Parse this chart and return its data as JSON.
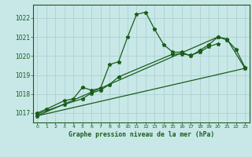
{
  "title": "Graphe pression niveau de la mer (hPa)",
  "bg_color": "#c8e8e8",
  "grid_color": "#a8cccc",
  "line_color": "#1a5c1a",
  "hours": [
    0,
    1,
    2,
    3,
    4,
    5,
    6,
    7,
    8,
    9,
    10,
    11,
    12,
    13,
    14,
    15,
    16,
    17,
    18,
    19,
    20,
    21,
    22,
    23
  ],
  "series1_x": [
    0,
    1,
    3,
    4,
    5,
    6,
    7,
    8,
    9,
    10,
    11,
    12,
    13,
    14,
    15,
    16,
    17,
    18,
    19,
    20,
    21,
    22,
    23
  ],
  "series1_y": [
    1017.0,
    1017.2,
    1017.65,
    1017.75,
    1018.35,
    1018.2,
    1018.3,
    1019.55,
    1019.7,
    1021.0,
    1022.2,
    1022.3,
    1021.4,
    1020.6,
    1020.2,
    1020.2,
    1020.0,
    1020.3,
    1020.6,
    1021.0,
    1020.85,
    1020.35,
    1019.4
  ],
  "series2_x": [
    0,
    3,
    5,
    6,
    7,
    8,
    9,
    15,
    16,
    17,
    18,
    19,
    20
  ],
  "series2_y": [
    1016.95,
    1017.45,
    1017.75,
    1018.05,
    1018.2,
    1018.5,
    1018.9,
    1020.1,
    1020.1,
    1020.05,
    1020.2,
    1020.5,
    1020.65
  ],
  "series3_x": [
    0,
    20,
    21,
    23
  ],
  "series3_y": [
    1016.85,
    1021.0,
    1020.9,
    1019.35
  ],
  "trend_x": [
    0,
    23
  ],
  "trend_y": [
    1016.85,
    1019.35
  ],
  "ylim": [
    1016.5,
    1022.7
  ],
  "yticks": [
    1017,
    1018,
    1019,
    1020,
    1021,
    1022
  ],
  "xlim": [
    -0.5,
    23.5
  ],
  "xticks": [
    0,
    1,
    2,
    3,
    4,
    5,
    6,
    7,
    8,
    9,
    10,
    11,
    12,
    13,
    14,
    15,
    16,
    17,
    18,
    19,
    20,
    21,
    22,
    23
  ]
}
